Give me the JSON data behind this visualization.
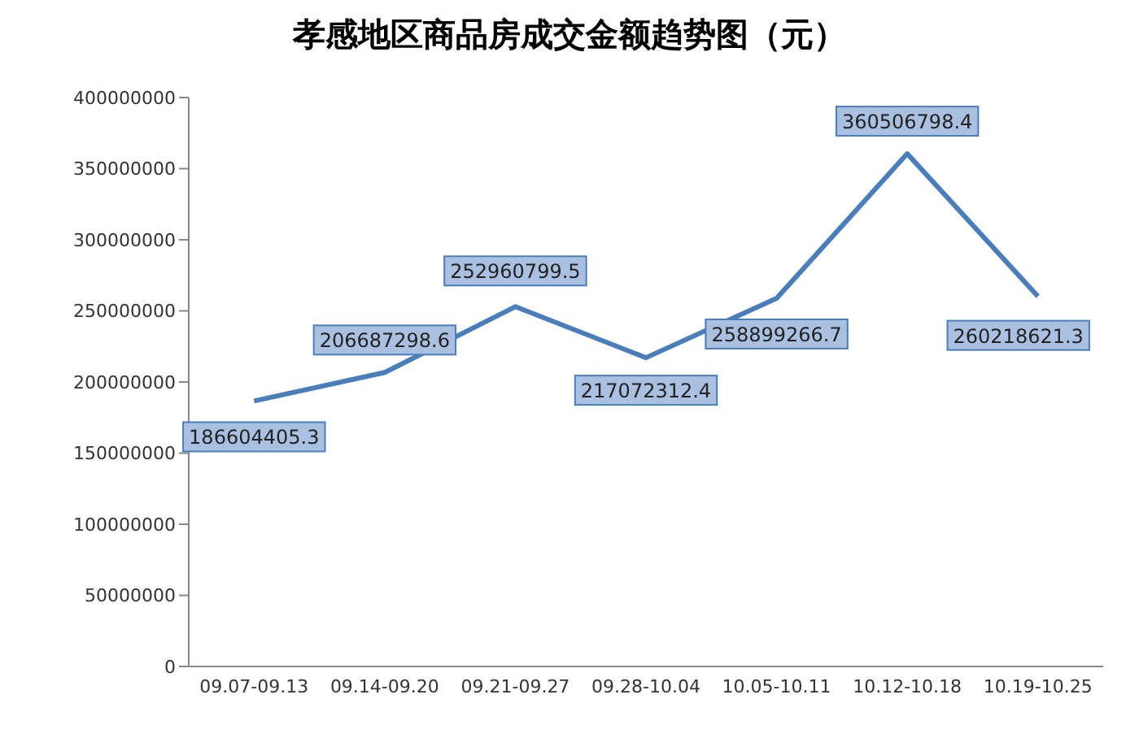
{
  "chart_data": {
    "type": "line",
    "title": "孝感地区商品房成交金额趋势图（元）",
    "categories": [
      "09.07-09.13",
      "09.14-09.20",
      "09.21-09.27",
      "09.28-10.04",
      "10.05-10.11",
      "10.12-10.18",
      "10.19-10.25"
    ],
    "series": [
      {
        "color": "#4a7ebb",
        "values": [
          186604405.3,
          206687298.6,
          252960799.5,
          217072312.4,
          258899266.7,
          360506798.4,
          260218621.3
        ]
      }
    ],
    "ylim": [
      0,
      400000000
    ],
    "yticks": [
      0,
      50000000,
      100000000,
      150000000,
      200000000,
      250000000,
      300000000,
      350000000,
      400000000
    ],
    "grid": false,
    "legend": false,
    "marker": "none",
    "line_style": "solid",
    "data_labels": true
  }
}
